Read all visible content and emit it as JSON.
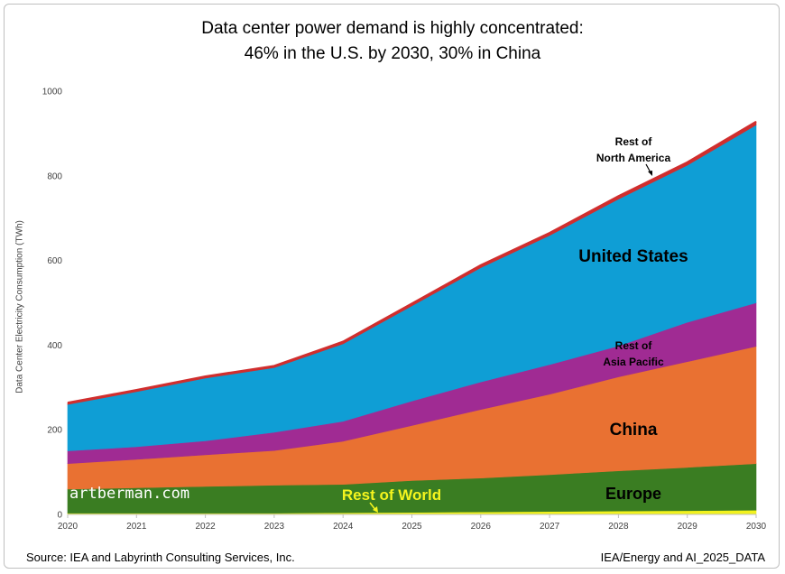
{
  "title": {
    "line1": "Data center power demand is highly concentrated:",
    "line2": "46% in the U.S. by 2030, 30% in China"
  },
  "footer": {
    "source": "Source: IEA and Labyrinth Consulting Services, Inc.",
    "dataset": "IEA/Energy and AI_2025_DATA"
  },
  "watermark": "artberman.com",
  "colors": {
    "rest_of_world": "#f2f21e",
    "europe": "#3a7d22",
    "china": "#e97132",
    "rest_of_asia_pacific": "#a02b93",
    "united_states": "#0f9ed5",
    "rest_of_north_america": "#d02e2e"
  },
  "chart_data": {
    "type": "area",
    "stacked": true,
    "title": "Data center power demand is highly concentrated: 46% in the U.S. by 2030, 30% in China",
    "xlabel": "",
    "ylabel": "Data Center Electricity Consumption (TWh)",
    "xlim": [
      2020,
      2030
    ],
    "ylim": [
      0,
      1000
    ],
    "yticks": [
      0,
      200,
      400,
      600,
      800,
      1000
    ],
    "x": [
      2020,
      2021,
      2022,
      2023,
      2024,
      2025,
      2026,
      2027,
      2028,
      2029,
      2030
    ],
    "series": [
      {
        "name": "Rest of World",
        "key": "rest_of_world",
        "values": [
          3,
          3,
          3,
          3,
          4,
          5,
          6,
          7,
          8,
          9,
          10
        ]
      },
      {
        "name": "Europe",
        "key": "europe",
        "values": [
          57,
          60,
          63,
          66,
          67,
          75,
          80,
          87,
          95,
          102,
          110
        ]
      },
      {
        "name": "China",
        "key": "china",
        "values": [
          60,
          67,
          75,
          82,
          102,
          130,
          162,
          190,
          222,
          250,
          277
        ]
      },
      {
        "name": "Rest of Asia Pacific",
        "key": "rest_of_asia_pacific",
        "values": [
          30,
          30,
          33,
          43,
          47,
          58,
          65,
          70,
          73,
          93,
          103
        ]
      },
      {
        "name": "United States",
        "key": "united_states",
        "values": [
          110,
          130,
          148,
          153,
          183,
          225,
          270,
          305,
          347,
          371,
          420
        ]
      },
      {
        "name": "Rest of North America",
        "key": "rest_of_north_america",
        "values": [
          4,
          4,
          4,
          4,
          5,
          5,
          6,
          6,
          7,
          7,
          8
        ]
      }
    ],
    "annotations": [
      {
        "text": "Rest of",
        "key": "rest_of_north_america"
      },
      {
        "text": "North America",
        "key": "rest_of_north_america"
      },
      {
        "text": "United States",
        "key": "united_states"
      },
      {
        "text": "Rest of",
        "key": "rest_of_asia_pacific"
      },
      {
        "text": "Asia Pacific",
        "key": "rest_of_asia_pacific"
      },
      {
        "text": "China",
        "key": "china"
      },
      {
        "text": "Europe",
        "key": "europe"
      },
      {
        "text": "Rest of World",
        "key": "rest_of_world"
      }
    ]
  }
}
